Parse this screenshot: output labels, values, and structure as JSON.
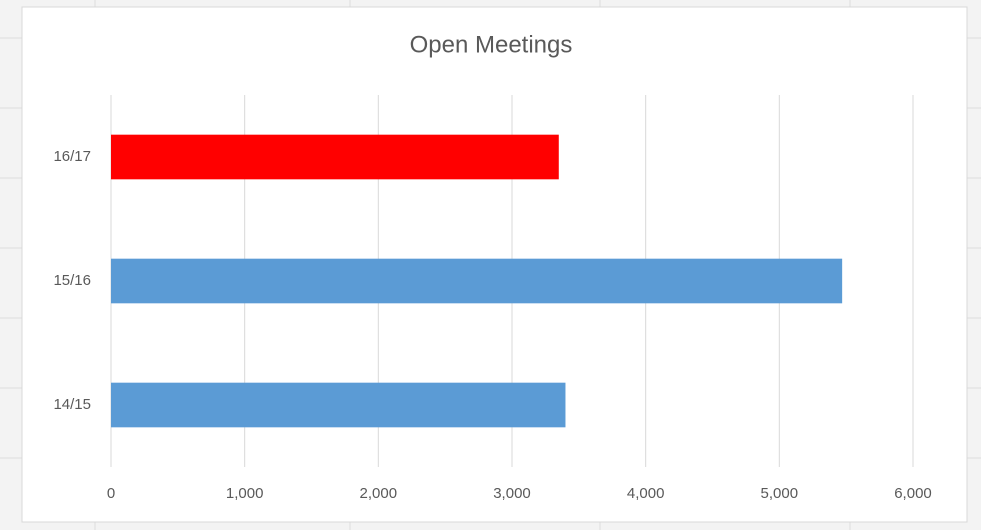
{
  "chart_data": {
    "type": "bar",
    "orientation": "horizontal",
    "title": "Open Meetings",
    "categories": [
      "14/15",
      "15/16",
      "16/17"
    ],
    "values": [
      3400,
      5470,
      3350
    ],
    "colors": [
      "#5b9bd5",
      "#5b9bd5",
      "#ff0000"
    ],
    "xlim": [
      0,
      6000
    ],
    "xticks": [
      0,
      {
        "value": 1000,
        "label": "1,000"
      },
      {
        "value": 2000,
        "label": "2,000"
      },
      {
        "value": 3000,
        "label": "3,000"
      },
      {
        "value": 4000,
        "label": "4,000"
      },
      {
        "value": 5000,
        "label": "5,000"
      },
      {
        "value": 6000,
        "label": "6,000"
      }
    ],
    "grid": true
  }
}
